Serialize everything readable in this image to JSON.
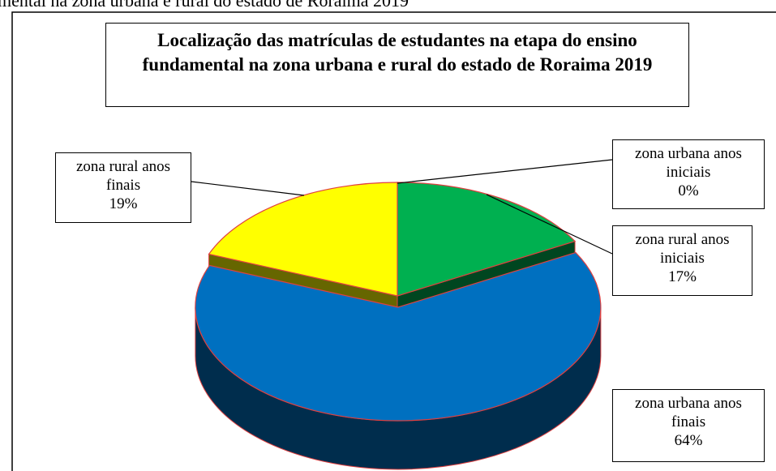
{
  "caption": "mental na zona urbana e rural do estado de Roraima 2019",
  "chart_data": {
    "type": "pie",
    "title": "Localização das matrículas de estudantes na etapa do ensino fundamental na zona urbana e rural do estado de Roraima 2019",
    "categories": [
      "zona urbana anos iniciais",
      "zona rural anos iniciais",
      "zona urbana anos finais",
      "zona rural anos finais"
    ],
    "values": [
      0,
      17,
      64,
      19
    ],
    "value_labels": [
      "0%",
      "17%",
      "64%",
      "19%"
    ],
    "colors": [
      "#ff0000",
      "#00b050",
      "#0070c0",
      "#ffff00"
    ]
  }
}
